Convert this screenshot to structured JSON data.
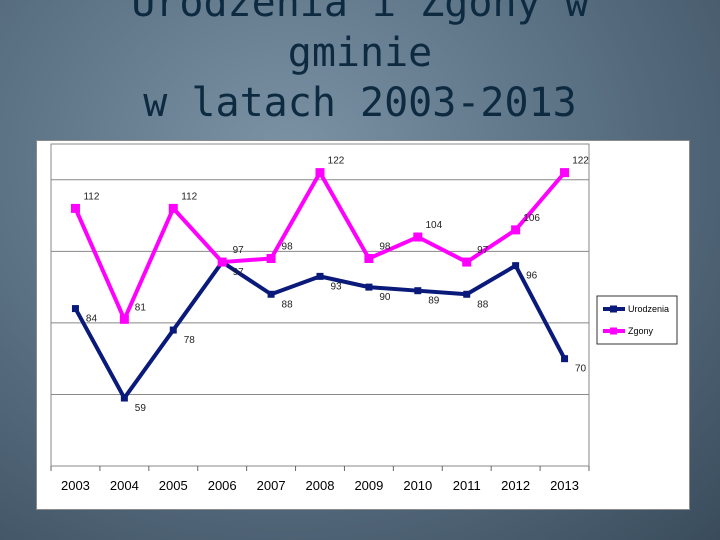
{
  "title": {
    "line1": "Urodzenia i Zgony w",
    "line2": "gminie",
    "line3": "w latach 2003-2013"
  },
  "colors": {
    "urodzenia": "#0a1a7a",
    "zgony": "#ff00ff"
  },
  "chart_data": {
    "type": "line",
    "title": "Urodzenia i Zgony w gminie w latach 2003-2013",
    "categories": [
      "2003",
      "2004",
      "2005",
      "2006",
      "2007",
      "2008",
      "2009",
      "2010",
      "2011",
      "2012",
      "2013"
    ],
    "series": [
      {
        "name": "Urodzenia",
        "values": [
          84,
          59,
          78,
          97,
          88,
          93,
          90,
          89,
          88,
          96,
          70
        ]
      },
      {
        "name": "Zgony",
        "values": [
          112,
          81,
          112,
          97,
          98,
          122,
          98,
          104,
          97,
          106,
          122
        ]
      }
    ],
    "ylim": [
      40,
      130
    ],
    "grid": true,
    "legend": "right"
  }
}
